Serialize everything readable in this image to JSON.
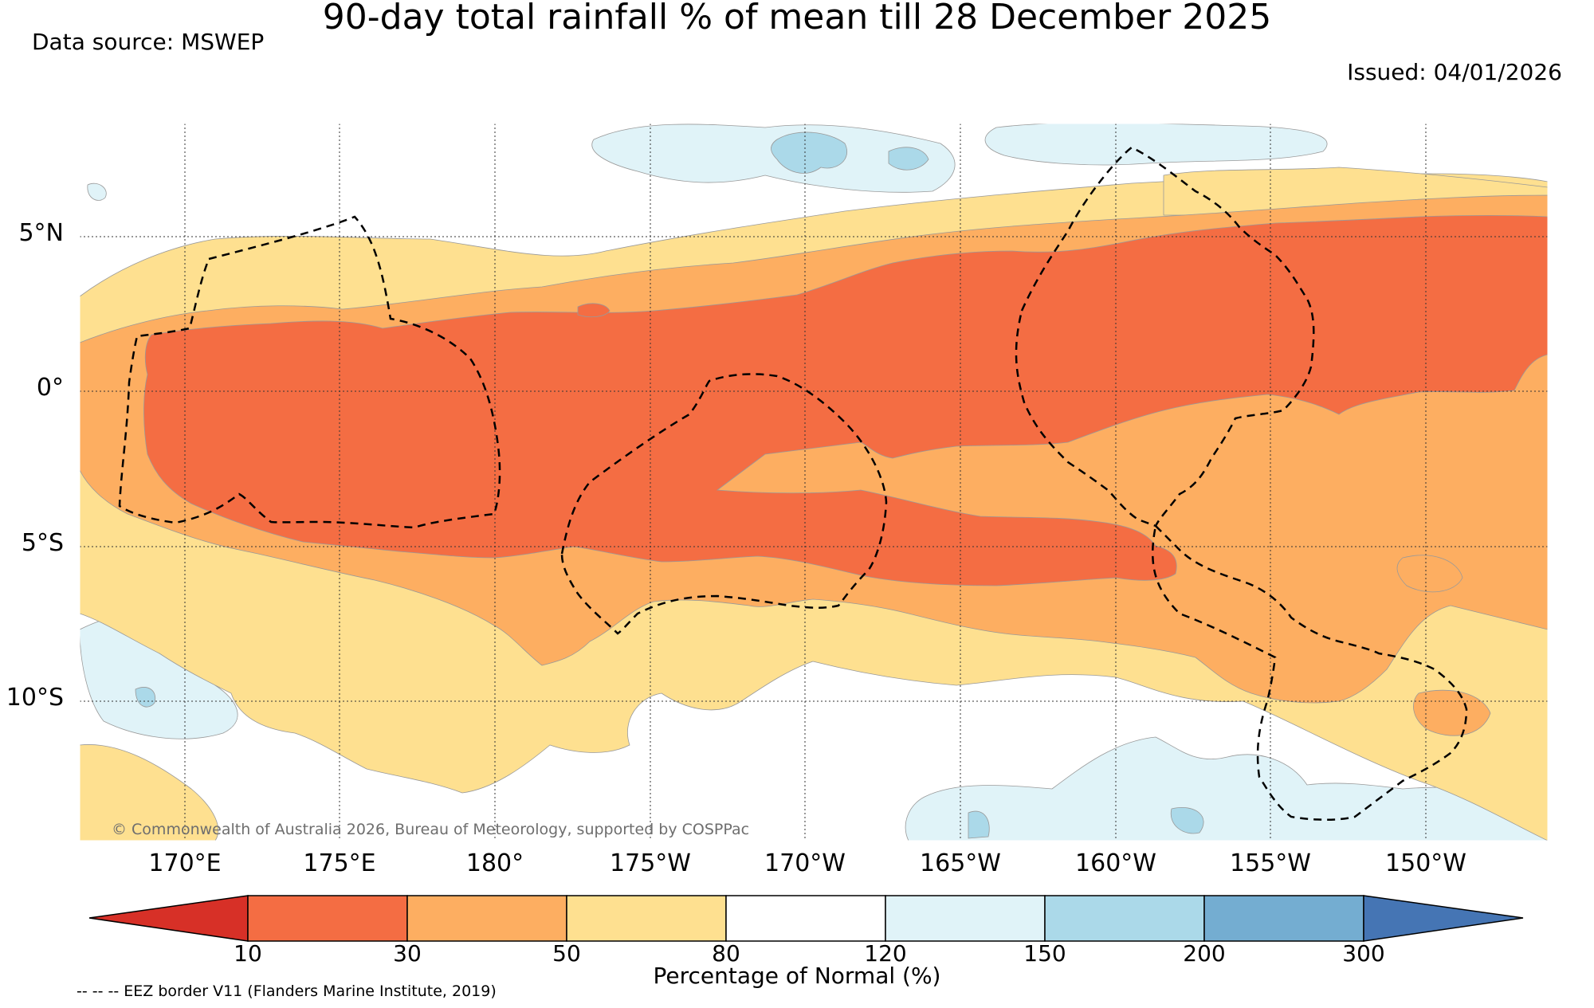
{
  "title": "90-day total rainfall % of mean till 28 December 2025",
  "data_source": "Data source: MSWEP",
  "issued": "Issued: 04/01/2026",
  "lat_labels": [
    "5°N",
    "0°",
    "5°S",
    "10°S"
  ],
  "lon_labels": [
    "170°E",
    "175°E",
    "180°",
    "175°W",
    "170°W",
    "165°W",
    "160°W",
    "155°W",
    "150°W"
  ],
  "copyright": "© Commonwealth of Australia 2026, Bureau of Meteorology, supported by COSPPac",
  "colorbar": {
    "title": "Percentage of Normal (%)",
    "ticks": [
      "10",
      "30",
      "50",
      "80",
      "120",
      "150",
      "200",
      "300"
    ],
    "colors": [
      "#d73027",
      "#f46d43",
      "#fdae61",
      "#fee090",
      "#ffffff",
      "#e0f3f8",
      "#abd9e9",
      "#74add1",
      "#4575b4"
    ]
  },
  "eez_note": "-- -- -- EEZ border V11 (Flanders Marine Institute, 2019)"
}
